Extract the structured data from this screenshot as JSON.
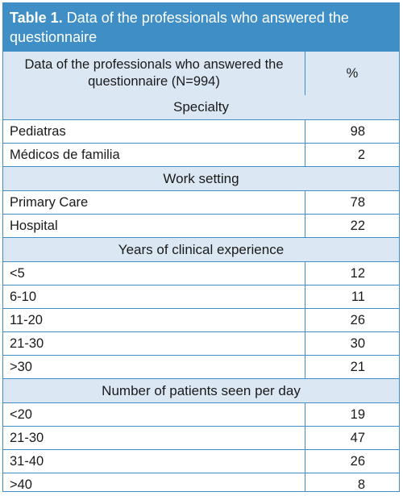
{
  "table": {
    "caption_lead": "Table 1.",
    "caption_rest": " Data of the professionals who answered the questionnaire",
    "header_label": "Data of the professionals who answered the questionnaire  (N=994)",
    "header_value": "%",
    "sections": [
      {
        "title": "Specialty",
        "rows": [
          {
            "label": "Pediatras",
            "value": "98"
          },
          {
            "label": "Médicos de familia",
            "value": "2"
          }
        ]
      },
      {
        "title": "Work setting",
        "rows": [
          {
            "label": "Primary Care",
            "value": "78"
          },
          {
            "label": "Hospital",
            "value": "22"
          }
        ]
      },
      {
        "title": "Years of clinical experience",
        "rows": [
          {
            "label": "<5",
            "value": "12"
          },
          {
            "label": "6-10",
            "value": "11"
          },
          {
            "label": "11-20",
            "value": "26"
          },
          {
            "label": "21-30",
            "value": "30"
          },
          {
            "label": ">30",
            "value": "21"
          }
        ]
      },
      {
        "title": "Number of patients seen per day",
        "rows": [
          {
            "label": "<20",
            "value": "19"
          },
          {
            "label": "21-30",
            "value": "47"
          },
          {
            "label": "31-40",
            "value": "26"
          },
          {
            "label": ">40",
            "value": "8"
          }
        ]
      }
    ]
  },
  "colors": {
    "accent": "#3f8fc6",
    "header_fill": "#dbe8f4"
  }
}
